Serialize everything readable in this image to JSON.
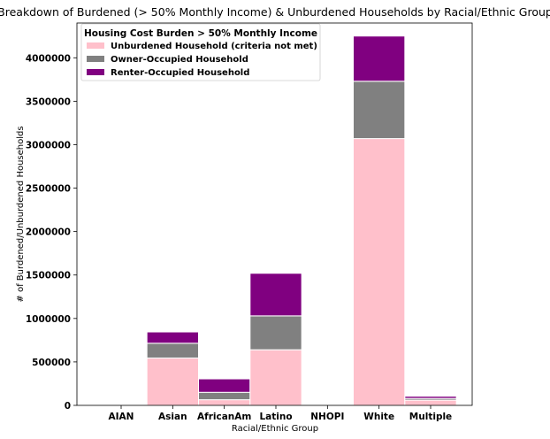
{
  "chart_data": {
    "type": "bar",
    "stacked": true,
    "title": "Breakdown of Burdened (> 50% Monthly Income) & Unburdened Households by Racial/Ethnic Group",
    "xlabel": "Racial/Ethnic Group",
    "ylabel": "# of Burdened/Unburdened Households",
    "categories": [
      "AIAN",
      "Asian",
      "AfricanAm",
      "Latino",
      "NHOPI",
      "White",
      "Multiple"
    ],
    "ylim": [
      0,
      4400000
    ],
    "yticks": [
      0,
      500000,
      1000000,
      1500000,
      2000000,
      2500000,
      3000000,
      3500000,
      4000000
    ],
    "ytick_labels": [
      "0",
      "500000",
      "1000000",
      "1500000",
      "2000000",
      "2500000",
      "3000000",
      "3500000",
      "4000000"
    ],
    "legend": {
      "title": "Housing Cost Burden > 50% Monthly Income",
      "position": "upper-left"
    },
    "series": [
      {
        "name": "Unburdened Household (criteria not met)",
        "color": "#ffc0cb",
        "values": [
          5000,
          545000,
          65000,
          640000,
          2000,
          3070000,
          60000
        ]
      },
      {
        "name": "Owner-Occupied Household",
        "color": "#808080",
        "values": [
          2000,
          170000,
          85000,
          390000,
          500,
          660000,
          20000
        ]
      },
      {
        "name": "Renter-Occupied Household",
        "color": "#800080",
        "values": [
          2000,
          130000,
          155000,
          490000,
          500,
          520000,
          25000
        ]
      }
    ]
  }
}
